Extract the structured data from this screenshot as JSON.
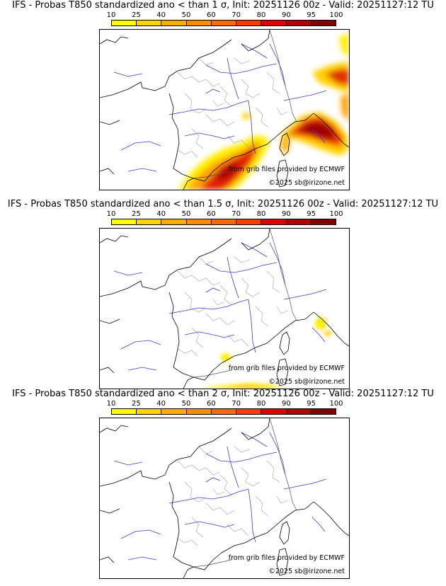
{
  "panels": [
    {
      "title": "IFS - Probas T850  standardized ano < than 1 σ, Init: 20251126 00z - Valid: 20251127:12 TU",
      "sigma": 1
    },
    {
      "title": "IFS - Probas T850  standardized ano < than 1.5 σ, Init: 20251126 00z - Valid: 20251127:12 TU",
      "sigma": 1.5
    },
    {
      "title": "IFS - Probas T850  standardized ano < than 2 σ, Init: 20251126 00z - Valid: 20251127:12 TU",
      "sigma": 2
    }
  ],
  "colorbar": {
    "ticks": [
      "10",
      "25",
      "40",
      "50",
      "60",
      "70",
      "80",
      "90",
      "95",
      "100"
    ],
    "colors": [
      "#ffff00",
      "#ffd500",
      "#ffad00",
      "#ff8c00",
      "#ff6a00",
      "#ff3c00",
      "#e00000",
      "#b40000",
      "#820000"
    ]
  },
  "credits": {
    "source": "from grib files provided by ECMWF",
    "copyright": "©2025 sb@irizone.net"
  },
  "colors": {
    "river": "#3b3bdd",
    "border": "#a0a0a0",
    "coast": "#000000"
  }
}
